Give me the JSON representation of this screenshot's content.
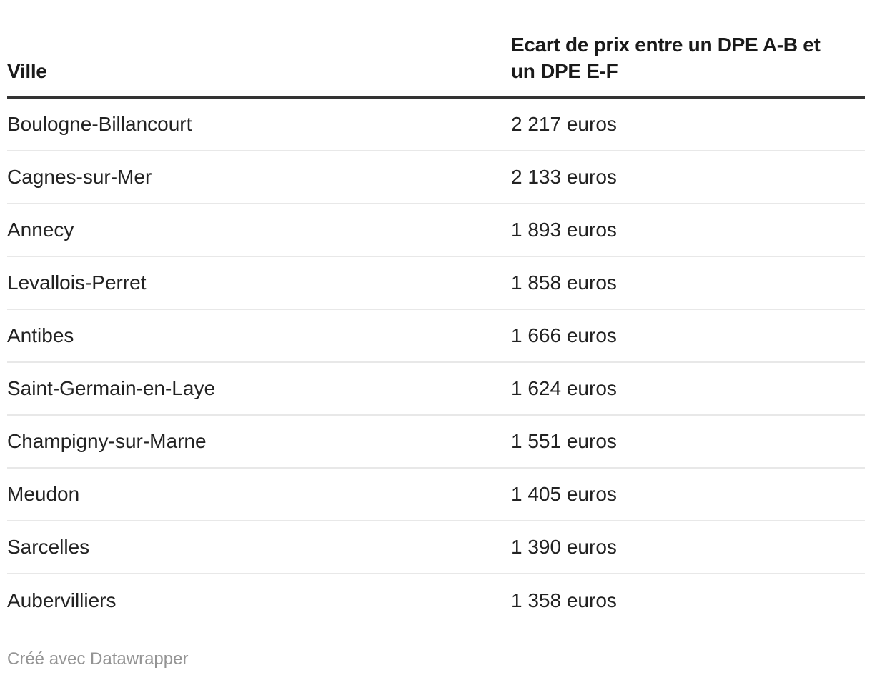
{
  "table": {
    "columns": [
      {
        "label": "Ville"
      },
      {
        "label_lines": [
          "Ecart de prix entre un DPE A-B et",
          "un DPE E-F"
        ]
      }
    ],
    "rows": [
      {
        "ville": "Boulogne-Billancourt",
        "ecart": "2 217 euros"
      },
      {
        "ville": "Cagnes-sur-Mer",
        "ecart": "2 133 euros"
      },
      {
        "ville": "Annecy",
        "ecart": "1 893 euros"
      },
      {
        "ville": "Levallois-Perret",
        "ecart": "1 858 euros"
      },
      {
        "ville": "Antibes",
        "ecart": "1 666 euros"
      },
      {
        "ville": "Saint-Germain-en-Laye",
        "ecart": "1 624 euros"
      },
      {
        "ville": "Champigny-sur-Marne",
        "ecart": "1 551 euros"
      },
      {
        "ville": "Meudon",
        "ecart": "1 405 euros"
      },
      {
        "ville": "Sarcelles",
        "ecart": "1 390 euros"
      },
      {
        "ville": "Aubervilliers",
        "ecart": "1 358 euros"
      }
    ]
  },
  "footer": {
    "attribution": "Créé avec Datawrapper"
  },
  "colors": {
    "background": "#ffffff",
    "header_rule": "#333333",
    "row_divider": "#e8e8e8",
    "body_text": "#222222",
    "header_text": "#1a1a1a",
    "footer_text": "#949494"
  },
  "chart_data": {
    "type": "table",
    "columns": [
      "Ville",
      "Ecart de prix entre un DPE A-B et un DPE E-F"
    ],
    "rows": [
      [
        "Boulogne-Billancourt",
        "2 217 euros"
      ],
      [
        "Cagnes-sur-Mer",
        "2 133 euros"
      ],
      [
        "Annecy",
        "1 893 euros"
      ],
      [
        "Levallois-Perret",
        "1 858 euros"
      ],
      [
        "Antibes",
        "1 666 euros"
      ],
      [
        "Saint-Germain-en-Laye",
        "1 624 euros"
      ],
      [
        "Champigny-sur-Marne",
        "1 551 euros"
      ],
      [
        "Meudon",
        "1 405 euros"
      ],
      [
        "Sarcelles",
        "1 390 euros"
      ],
      [
        "Aubervilliers",
        "1 358 euros"
      ]
    ],
    "values_euros": [
      2217,
      2133,
      1893,
      1858,
      1666,
      1624,
      1551,
      1405,
      1390,
      1358
    ],
    "attribution": "Créé avec Datawrapper"
  }
}
